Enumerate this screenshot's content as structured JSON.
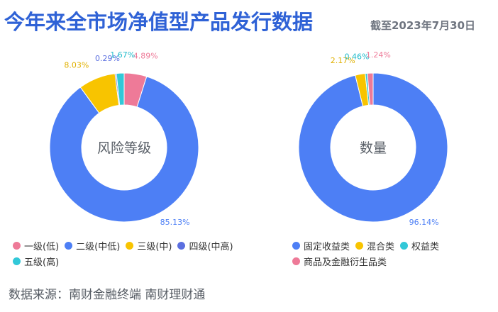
{
  "title": "今年来全市场净值型产品发行数据",
  "subtitle": "截至2023年7月30日",
  "source": "数据来源：南财金融终端 南财理财通",
  "chart_data": [
    {
      "type": "pie",
      "center_label": "风险等级",
      "categories": [
        "一级(低)",
        "二级(中低)",
        "三级(中)",
        "四级(中高)",
        "五级(高)"
      ],
      "values": [
        4.89,
        85.13,
        8.03,
        0.29,
        1.67
      ],
      "labels": [
        "4.89%",
        "85.13%",
        "8.03%",
        "0.29%",
        "1.67%"
      ],
      "colors": [
        "#ee7a98",
        "#4d7ff5",
        "#f8c400",
        "#5b6fe0",
        "#32c8d8"
      ],
      "label_colors": [
        "#ee7a98",
        "#4d7ff5",
        "#e0b000",
        "#5b6fe0",
        "#22bccc"
      ],
      "legend_rows": [
        [
          0,
          1,
          2,
          3
        ],
        [
          4
        ]
      ]
    },
    {
      "type": "pie",
      "center_label": "数量",
      "categories": [
        "固定收益类",
        "混合类",
        "权益类",
        "商品及金融衍生品类"
      ],
      "values": [
        96.14,
        2.17,
        0.46,
        1.24
      ],
      "labels": [
        "96.14%",
        "2.17%",
        "0.46%",
        "1.24%"
      ],
      "colors": [
        "#4d7ff5",
        "#f8c400",
        "#32c8d8",
        "#ee7a98"
      ],
      "label_colors": [
        "#4d7ff5",
        "#e0b000",
        "#22bccc",
        "#ee7a98"
      ],
      "legend_rows": [
        [
          0,
          1,
          2
        ],
        [
          3
        ]
      ]
    }
  ]
}
